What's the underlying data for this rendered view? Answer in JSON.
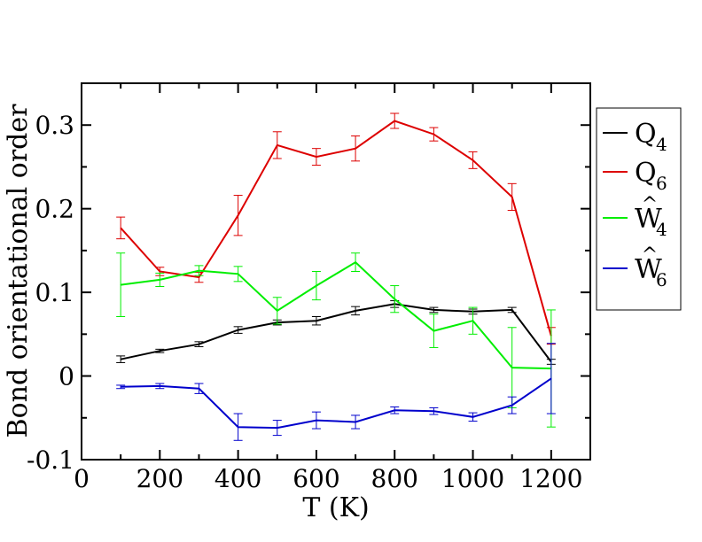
{
  "chart_data": {
    "type": "line",
    "title": "",
    "xlabel": "T (K)",
    "ylabel": "Bond orientational order",
    "xlim": [
      0,
      1300
    ],
    "ylim": [
      -0.1,
      0.35
    ],
    "x_ticks": [
      0,
      200,
      400,
      600,
      800,
      1000,
      1200
    ],
    "y_ticks": [
      -0.1,
      0,
      0.1,
      0.2,
      0.3
    ],
    "x_tick_labels": [
      "0",
      "200",
      "400",
      "600",
      "800",
      "1000",
      "1200"
    ],
    "y_tick_labels": [
      "-0.1",
      "0",
      "0.1",
      "0.2",
      "0.3"
    ],
    "grid": false,
    "legend_position": "outside-right",
    "series": [
      {
        "name": "Q4",
        "label_main": "Q",
        "label_sub": "4",
        "hat": "",
        "color": "#000000",
        "x": [
          100,
          200,
          300,
          400,
          500,
          600,
          700,
          800,
          900,
          1000,
          1100,
          1200
        ],
        "y": [
          0.02,
          0.03,
          0.038,
          0.055,
          0.064,
          0.066,
          0.078,
          0.086,
          0.079,
          0.077,
          0.079,
          0.017
        ],
        "err": [
          0.004,
          0.002,
          0.003,
          0.004,
          0.003,
          0.005,
          0.005,
          0.004,
          0.003,
          0.003,
          0.003,
          0.003
        ]
      },
      {
        "name": "Q6",
        "label_main": "Q",
        "label_sub": "6",
        "hat": "",
        "color": "#dd0000",
        "x": [
          100,
          200,
          300,
          400,
          500,
          600,
          700,
          800,
          900,
          1000,
          1100,
          1200
        ],
        "y": [
          0.177,
          0.125,
          0.118,
          0.192,
          0.276,
          0.262,
          0.272,
          0.305,
          0.289,
          0.258,
          0.214,
          0.048
        ],
        "err": [
          0.013,
          0.005,
          0.006,
          0.024,
          0.016,
          0.01,
          0.015,
          0.009,
          0.008,
          0.01,
          0.016,
          0.01
        ]
      },
      {
        "name": "W4",
        "label_main": "W",
        "label_sub": "4",
        "hat": "^",
        "color": "#00ee00",
        "x": [
          100,
          200,
          300,
          400,
          500,
          600,
          700,
          800,
          900,
          1000,
          1100,
          1200
        ],
        "y": [
          0.109,
          0.115,
          0.126,
          0.122,
          0.078,
          0.108,
          0.136,
          0.092,
          0.054,
          0.066,
          0.01,
          0.009
        ],
        "err": [
          0.038,
          0.008,
          0.006,
          0.009,
          0.016,
          0.017,
          0.011,
          0.016,
          0.02,
          0.016,
          0.048,
          0.07
        ]
      },
      {
        "name": "W6",
        "label_main": "W",
        "label_sub": "6",
        "hat": "^",
        "color": "#0000cc",
        "x": [
          100,
          200,
          300,
          400,
          500,
          600,
          700,
          800,
          900,
          1000,
          1100,
          1200
        ],
        "y": [
          -0.013,
          -0.012,
          -0.015,
          -0.061,
          -0.062,
          -0.053,
          -0.055,
          -0.041,
          -0.042,
          -0.049,
          -0.035,
          -0.003
        ],
        "err": [
          0.002,
          0.003,
          0.006,
          0.016,
          0.009,
          0.01,
          0.008,
          0.004,
          0.004,
          0.005,
          0.01,
          0.042
        ]
      }
    ]
  }
}
